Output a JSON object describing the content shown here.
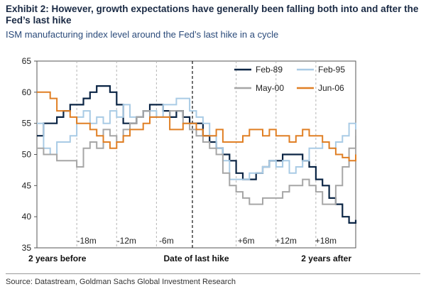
{
  "header": {
    "title": "Exhibit 2: However, growth expectations have generally been falling both into and after the Fed’s last hike",
    "subtitle": "ISM manufacturing index level around the Fed’s last hike in a cycle"
  },
  "footer": {
    "source": "Source: Datastream, Goldman Sachs Global Investment Research"
  },
  "chart_data": {
    "type": "line",
    "title": "ISM manufacturing index level around the Fed’s last hike in a cycle",
    "xlabel": "",
    "ylabel": "",
    "xlim": [
      -24,
      24
    ],
    "ylim": [
      35,
      65
    ],
    "yticks": [
      35,
      40,
      45,
      50,
      55,
      60,
      65
    ],
    "xticks_bottom": [
      {
        "x": -24,
        "label": "2 years before"
      },
      {
        "x": 0,
        "label": "Date of last hike"
      },
      {
        "x": 24,
        "label": "2 years after"
      }
    ],
    "month_markers": [
      {
        "x": -18,
        "label": "-18m"
      },
      {
        "x": -12,
        "label": "-12m"
      },
      {
        "x": -6,
        "label": "-6m"
      },
      {
        "x": 6,
        "label": "+6m"
      },
      {
        "x": 12,
        "label": "+12m"
      },
      {
        "x": 18,
        "label": "+18m"
      }
    ],
    "series": [
      {
        "name": "Feb-89",
        "color": "#0b2545",
        "values": [
          53,
          55,
          55,
          56,
          57,
          58,
          58,
          59,
          60,
          61,
          61,
          60,
          58,
          55,
          55,
          56,
          57,
          58,
          58,
          57,
          56,
          57,
          56,
          55,
          55,
          53,
          52,
          51,
          50,
          49,
          47,
          46,
          46,
          47,
          48,
          49,
          49,
          50,
          50,
          50,
          49,
          48,
          46,
          45,
          43,
          42,
          40,
          39,
          39.5
        ]
      },
      {
        "name": "Feb-95",
        "color": "#a9cbe5",
        "values": [
          55,
          51,
          50,
          52,
          52,
          53,
          56,
          57,
          55,
          56,
          55,
          57,
          56,
          58,
          56,
          56,
          57,
          57,
          56,
          58,
          58,
          59,
          59,
          57,
          56,
          55,
          53,
          51,
          49,
          46,
          46,
          46,
          47,
          47,
          48,
          49,
          48,
          49,
          47,
          48,
          49,
          51,
          51,
          52,
          51,
          52,
          53,
          55,
          54
        ]
      },
      {
        "name": "May-00",
        "color": "#a6a6a6",
        "values": [
          51,
          50,
          50,
          49,
          49,
          49,
          48,
          51,
          52,
          51,
          54,
          53,
          52,
          54,
          55,
          56,
          57,
          56,
          56,
          56,
          57,
          57,
          55,
          54,
          53,
          52,
          51,
          50,
          47,
          45,
          44,
          43,
          42,
          42,
          43,
          43,
          43,
          44,
          45,
          45,
          46,
          45,
          44,
          42,
          42,
          45,
          48,
          51,
          53
        ]
      },
      {
        "name": "Jun-06",
        "color": "#e07f24",
        "values": [
          60,
          60,
          59,
          57,
          57,
          56,
          55,
          55,
          54,
          53,
          52,
          51,
          52,
          53,
          54,
          54,
          55,
          56,
          56,
          56,
          54,
          54,
          55,
          55,
          54,
          53,
          53,
          54,
          52,
          52,
          52,
          53,
          54,
          54,
          53,
          54,
          53,
          53,
          52,
          53,
          54,
          53,
          53,
          52,
          51,
          50,
          49.5,
          49,
          50
        ]
      }
    ],
    "legend_position": "top-right"
  }
}
